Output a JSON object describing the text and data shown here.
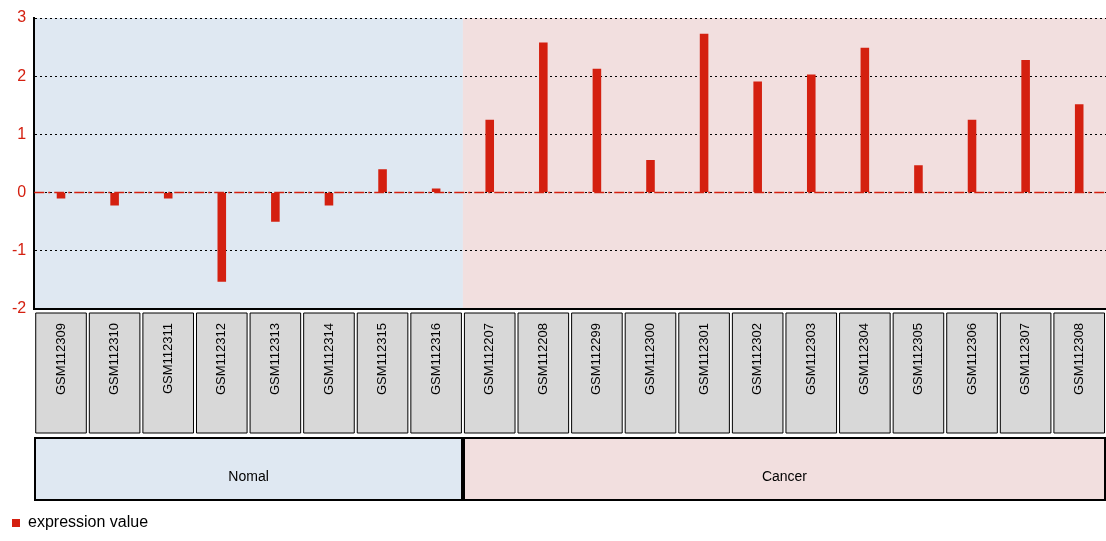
{
  "chart_data": {
    "type": "bar",
    "categories": [
      "GSM112309",
      "GSM112310",
      "GSM112311",
      "GSM112312",
      "GSM112313",
      "GSM112314",
      "GSM112315",
      "GSM112316",
      "GSM112207",
      "GSM112208",
      "GSM112299",
      "GSM112300",
      "GSM112301",
      "GSM112302",
      "GSM112303",
      "GSM112304",
      "GSM112305",
      "GSM112306",
      "GSM112307",
      "GSM112308"
    ],
    "series": [
      {
        "name": "expression value",
        "color": "#d42010",
        "values": [
          -0.1,
          -0.22,
          -0.1,
          -1.53,
          -0.5,
          -0.22,
          0.4,
          0.07,
          1.25,
          2.58,
          2.13,
          0.56,
          2.73,
          1.91,
          2.03,
          2.49,
          0.47,
          1.25,
          2.28,
          1.52
        ]
      }
    ],
    "ylim": [
      -2,
      3
    ],
    "yticks": [
      -2,
      -1,
      0,
      1,
      2,
      3
    ],
    "grid": "y",
    "legend": "bottom left",
    "ref_lines": [
      {
        "axis": "y",
        "value": 0,
        "color": "#d42010",
        "line_style": "dashed"
      }
    ],
    "bands": [
      {
        "axis": "x",
        "from": "GSM112309",
        "to": "GSM112316",
        "color": "#dfe8f2"
      },
      {
        "axis": "x",
        "from": "GSM112207",
        "to": "GSM112308",
        "color": "#f2dfdf"
      }
    ],
    "annotations": [
      "Nomal",
      "Cancer"
    ]
  }
}
